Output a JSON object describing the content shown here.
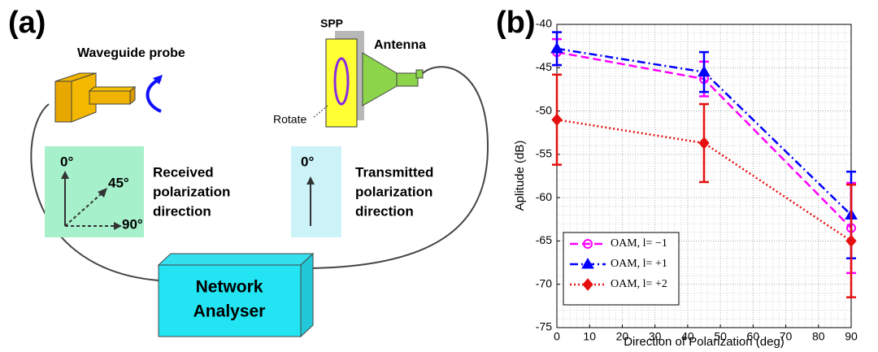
{
  "panel_a": {
    "label": "(a)",
    "waveguide_probe": "Waveguide probe",
    "spp": "SPP",
    "antenna": "Antenna",
    "rotate": "Rotate",
    "received": {
      "angles": [
        "0°",
        "45°",
        "90°"
      ],
      "caption": [
        "Received",
        "polarization",
        "direction"
      ]
    },
    "transmitted": {
      "angle": "0°",
      "caption": [
        "Transmitted",
        "polarization",
        "direction"
      ]
    },
    "network_analyser": [
      "Network",
      "Analyser"
    ]
  },
  "chart_data": {
    "type": "line",
    "panel_label": "(b)",
    "x_label": "Direction of Polarization (deg)",
    "y_label": "Aplitude (dB)",
    "x": [
      0,
      45,
      90
    ],
    "series": [
      {
        "name": "OAM, l= −1",
        "color": "#ff00ff",
        "linestyle": "dashed",
        "marker": "circle",
        "values": [
          -43.2,
          -46.3,
          -63.5
        ],
        "errors": [
          1.5,
          2,
          5.2
        ]
      },
      {
        "name": "OAM, l= +1",
        "color": "#0000ff",
        "linestyle": "dashdot",
        "marker": "triangle",
        "values": [
          -42.8,
          -45.5,
          -62
        ],
        "errors": [
          1.9,
          2.3,
          5
        ]
      },
      {
        "name": "OAM, l= +2",
        "color": "#e61010",
        "linestyle": "dotted",
        "marker": "diamond",
        "values": [
          -51,
          -53.7,
          -65
        ],
        "errors": [
          5.2,
          4.5,
          6.5
        ]
      }
    ],
    "xlim": [
      0,
      90
    ],
    "xticks": [
      0,
      10,
      20,
      30,
      40,
      50,
      60,
      70,
      80,
      90
    ],
    "ylim": [
      -75,
      -40
    ],
    "yticks": [
      -75,
      -70,
      -65,
      -60,
      -55,
      -50,
      -45,
      -40
    ],
    "grid": true,
    "minor_grid": true,
    "legend": "lower left"
  }
}
